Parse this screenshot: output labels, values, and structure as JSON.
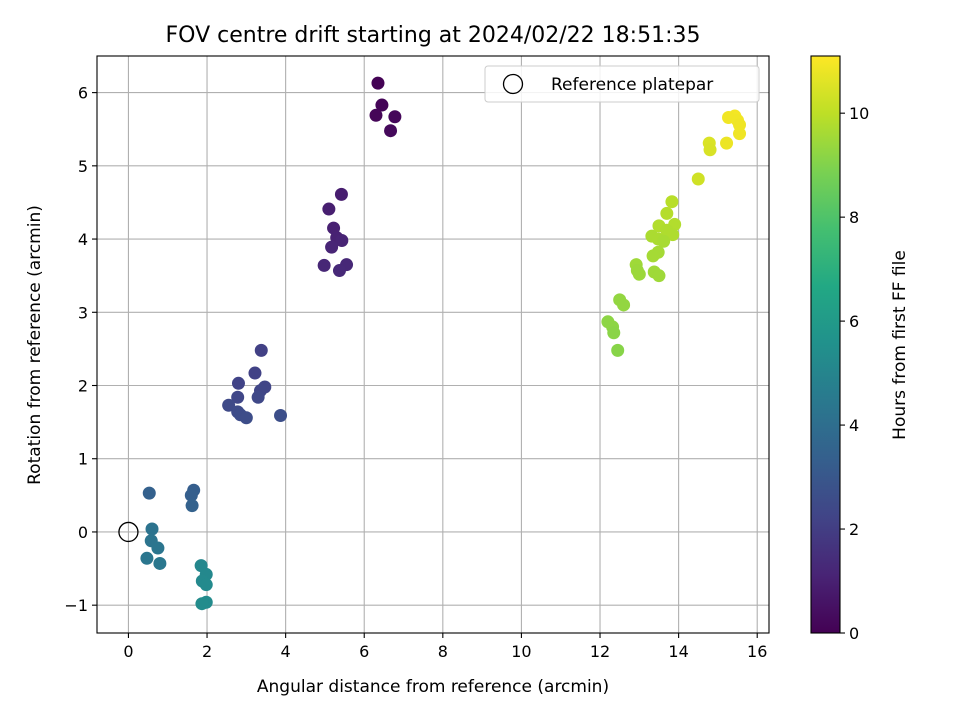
{
  "chart_data": {
    "type": "scatter",
    "title": "FOV centre drift starting at 2024/02/22 18:51:35",
    "xlabel": "Angular distance from reference (arcmin)",
    "ylabel": "Rotation from reference (arcmin)",
    "xlim": [
      -0.8,
      16.3
    ],
    "ylim": [
      -1.38,
      6.5
    ],
    "xticks": [
      0,
      2,
      4,
      6,
      8,
      10,
      12,
      14,
      16
    ],
    "yticks": [
      -1,
      0,
      1,
      2,
      3,
      4,
      5,
      6
    ],
    "xtick_labels": [
      "0",
      "2",
      "4",
      "6",
      "8",
      "10",
      "12",
      "14",
      "16"
    ],
    "ytick_labels": [
      "−1",
      "0",
      "1",
      "2",
      "3",
      "4",
      "5",
      "6"
    ],
    "grid": true,
    "colormap": "viridis",
    "colorbar": {
      "label": "Hours from first FF file",
      "range": [
        0,
        11.1
      ],
      "ticks": [
        0,
        2,
        4,
        6,
        8,
        10
      ],
      "tick_labels": [
        "0",
        "2",
        "4",
        "6",
        "8",
        "10"
      ]
    },
    "legend": {
      "position": "upper right",
      "entries": [
        {
          "label": "Reference platepar",
          "marker": "open-circle"
        }
      ]
    },
    "reference_point": {
      "x": 0,
      "y": 0
    },
    "points": [
      {
        "x": 6.35,
        "y": 6.13,
        "c": 0.05
      },
      {
        "x": 6.45,
        "y": 5.83,
        "c": 0.1
      },
      {
        "x": 6.3,
        "y": 5.69,
        "c": 0.15
      },
      {
        "x": 6.78,
        "y": 5.67,
        "c": 0.2
      },
      {
        "x": 6.67,
        "y": 5.48,
        "c": 0.25
      },
      {
        "x": 5.42,
        "y": 4.61,
        "c": 0.9
      },
      {
        "x": 5.1,
        "y": 4.41,
        "c": 0.95
      },
      {
        "x": 5.22,
        "y": 4.15,
        "c": 1.0
      },
      {
        "x": 5.3,
        "y": 4.02,
        "c": 1.05
      },
      {
        "x": 5.43,
        "y": 3.98,
        "c": 1.1
      },
      {
        "x": 5.17,
        "y": 3.89,
        "c": 1.15
      },
      {
        "x": 4.98,
        "y": 3.64,
        "c": 1.2
      },
      {
        "x": 5.55,
        "y": 3.65,
        "c": 1.25
      },
      {
        "x": 5.37,
        "y": 3.57,
        "c": 1.3
      },
      {
        "x": 3.38,
        "y": 2.48,
        "c": 2.1
      },
      {
        "x": 3.22,
        "y": 2.17,
        "c": 2.15
      },
      {
        "x": 2.8,
        "y": 2.03,
        "c": 2.2
      },
      {
        "x": 3.47,
        "y": 1.98,
        "c": 2.25
      },
      {
        "x": 3.36,
        "y": 1.93,
        "c": 2.3
      },
      {
        "x": 2.78,
        "y": 1.84,
        "c": 2.35
      },
      {
        "x": 3.3,
        "y": 1.84,
        "c": 2.4
      },
      {
        "x": 2.55,
        "y": 1.73,
        "c": 2.45
      },
      {
        "x": 2.78,
        "y": 1.64,
        "c": 2.5
      },
      {
        "x": 2.85,
        "y": 1.6,
        "c": 2.55
      },
      {
        "x": 3.0,
        "y": 1.56,
        "c": 2.6
      },
      {
        "x": 3.87,
        "y": 1.59,
        "c": 2.65
      },
      {
        "x": 1.66,
        "y": 0.57,
        "c": 3.3
      },
      {
        "x": 1.6,
        "y": 0.5,
        "c": 3.35
      },
      {
        "x": 0.53,
        "y": 0.53,
        "c": 3.4
      },
      {
        "x": 1.62,
        "y": 0.36,
        "c": 3.45
      },
      {
        "x": 0.6,
        "y": 0.04,
        "c": 4.2
      },
      {
        "x": 0.58,
        "y": -0.12,
        "c": 4.25
      },
      {
        "x": 0.75,
        "y": -0.22,
        "c": 4.3
      },
      {
        "x": 0.47,
        "y": -0.36,
        "c": 4.35
      },
      {
        "x": 0.8,
        "y": -0.43,
        "c": 4.4
      },
      {
        "x": 1.85,
        "y": -0.46,
        "c": 5.1
      },
      {
        "x": 1.98,
        "y": -0.58,
        "c": 5.15
      },
      {
        "x": 1.88,
        "y": -0.67,
        "c": 5.2
      },
      {
        "x": 1.98,
        "y": -0.72,
        "c": 5.25
      },
      {
        "x": 1.98,
        "y": -0.96,
        "c": 5.3
      },
      {
        "x": 1.87,
        "y": -0.98,
        "c": 5.35
      },
      {
        "x": 15.43,
        "y": 5.68,
        "c": 10.95
      },
      {
        "x": 15.27,
        "y": 5.66,
        "c": 10.9
      },
      {
        "x": 15.5,
        "y": 5.62,
        "c": 10.9
      },
      {
        "x": 15.55,
        "y": 5.56,
        "c": 10.85
      },
      {
        "x": 15.55,
        "y": 5.44,
        "c": 10.85
      },
      {
        "x": 15.22,
        "y": 5.31,
        "c": 10.8
      },
      {
        "x": 14.78,
        "y": 5.31,
        "c": 10.5
      },
      {
        "x": 14.8,
        "y": 5.22,
        "c": 10.45
      },
      {
        "x": 14.5,
        "y": 4.82,
        "c": 10.3
      },
      {
        "x": 13.83,
        "y": 4.51,
        "c": 9.9
      },
      {
        "x": 13.7,
        "y": 4.35,
        "c": 9.85
      },
      {
        "x": 13.5,
        "y": 4.18,
        "c": 9.8
      },
      {
        "x": 13.9,
        "y": 4.2,
        "c": 9.8
      },
      {
        "x": 13.7,
        "y": 4.12,
        "c": 9.75
      },
      {
        "x": 13.85,
        "y": 4.06,
        "c": 9.75
      },
      {
        "x": 13.32,
        "y": 4.04,
        "c": 9.7
      },
      {
        "x": 13.48,
        "y": 4.0,
        "c": 9.7
      },
      {
        "x": 13.62,
        "y": 3.97,
        "c": 9.65
      },
      {
        "x": 13.48,
        "y": 3.82,
        "c": 9.6
      },
      {
        "x": 13.35,
        "y": 3.77,
        "c": 9.6
      },
      {
        "x": 12.92,
        "y": 3.65,
        "c": 9.5
      },
      {
        "x": 12.95,
        "y": 3.57,
        "c": 9.45
      },
      {
        "x": 13.0,
        "y": 3.52,
        "c": 9.45
      },
      {
        "x": 13.38,
        "y": 3.55,
        "c": 9.5
      },
      {
        "x": 13.5,
        "y": 3.5,
        "c": 9.5
      },
      {
        "x": 12.5,
        "y": 3.17,
        "c": 9.3
      },
      {
        "x": 12.6,
        "y": 3.1,
        "c": 9.3
      },
      {
        "x": 12.2,
        "y": 2.87,
        "c": 9.2
      },
      {
        "x": 12.32,
        "y": 2.8,
        "c": 9.2
      },
      {
        "x": 12.35,
        "y": 2.72,
        "c": 9.15
      },
      {
        "x": 12.45,
        "y": 2.48,
        "c": 9.1
      }
    ]
  }
}
